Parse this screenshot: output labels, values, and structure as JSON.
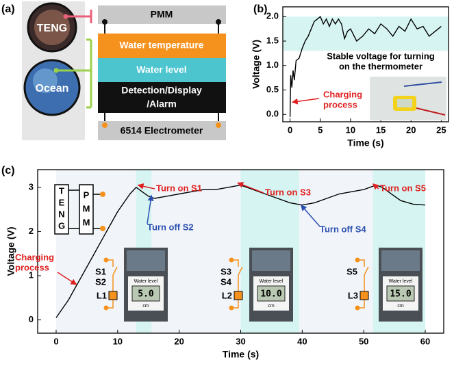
{
  "diagram": {
    "panel_label": "(a)",
    "sources": [
      "TENG",
      "Ocean"
    ],
    "blocks": [
      "PMM",
      "Water temperature",
      "Water level",
      [
        "Detection/Display",
        "/Alarm"
      ],
      "6514 Electrometer"
    ]
  },
  "chart_data": [
    {
      "type": "line",
      "panel_label": "(b)",
      "x_label": "Time (s)",
      "y_label": "Voltage (V)",
      "xlim": [
        -1.2,
        26.2
      ],
      "ylim": [
        -0.15,
        2.2
      ],
      "xticks": [
        0,
        5,
        10,
        15,
        20,
        25
      ],
      "yticks": [
        {
          "value": 0,
          "label": "0.0"
        },
        {
          "value": 0.5,
          "label": "0.5"
        },
        {
          "value": 1,
          "label": "1.0"
        },
        {
          "value": 1.5,
          "label": "1.5"
        },
        {
          "value": 2,
          "label": "2.0"
        }
      ],
      "shade_y": [
        1.3,
        2.0
      ],
      "shade_color": "#d6f5f2",
      "series": [
        {
          "color": "#000000",
          "x": [
            0,
            0.1,
            0.3,
            0.5,
            0.7,
            1,
            1.5,
            2,
            2.5,
            3,
            3.5,
            4,
            4.5,
            5,
            5.5,
            6,
            6.5,
            7,
            7.5,
            8,
            8.5,
            9,
            9.5,
            10,
            11,
            12,
            13,
            14,
            15,
            16,
            17,
            18,
            19,
            20,
            21,
            22,
            23,
            24,
            25
          ],
          "values": [
            -0.05,
            0.8,
            0.55,
            0.9,
            0.7,
            1.1,
            1.15,
            1.35,
            1.5,
            1.6,
            1.75,
            1.9,
            1.95,
            2.0,
            1.85,
            1.95,
            1.8,
            1.95,
            1.85,
            1.95,
            1.85,
            1.55,
            1.7,
            1.75,
            1.5,
            1.6,
            1.75,
            1.65,
            1.85,
            1.75,
            1.6,
            1.8,
            1.7,
            1.95,
            1.75,
            1.8,
            1.6,
            1.7,
            1.8
          ]
        }
      ],
      "annotations": [
        {
          "text": [
            "Stable voltage for turning",
            "on the thermometer"
          ],
          "color": "#000000"
        },
        {
          "text": [
            "Charging",
            "process"
          ],
          "color": "#e02020"
        }
      ]
    },
    {
      "type": "line",
      "panel_label": "(c)",
      "x_label": "Time (s)",
      "y_label": "Voltage (V)",
      "xlim": [
        -3,
        63
      ],
      "ylim": [
        -0.3,
        3.4
      ],
      "xticks": [
        0,
        10,
        20,
        30,
        40,
        50,
        60
      ],
      "yticks": [
        0,
        1,
        2,
        3
      ],
      "shade_x": [
        [
          13,
          15.5
        ],
        [
          30,
          39.5
        ],
        [
          51.5,
          60
        ]
      ],
      "shade_color": "#d6f5f2",
      "series": [
        {
          "color": "#000000",
          "x": [
            0,
            1,
            2,
            3,
            4,
            5,
            6,
            7,
            8,
            9,
            10,
            11,
            12,
            13,
            14,
            15,
            16,
            18,
            20,
            22,
            24,
            26,
            28,
            30,
            32,
            34,
            36,
            38,
            40,
            42,
            44,
            46,
            48,
            50,
            51,
            52,
            53,
            54,
            56,
            58,
            60
          ],
          "values": [
            0.05,
            0.25,
            0.45,
            0.7,
            0.95,
            1.2,
            1.45,
            1.7,
            1.95,
            2.2,
            2.45,
            2.65,
            2.85,
            3.0,
            2.9,
            2.8,
            2.75,
            2.8,
            2.85,
            2.9,
            2.95,
            2.95,
            3.0,
            3.05,
            2.95,
            2.85,
            2.75,
            2.65,
            2.6,
            2.65,
            2.75,
            2.85,
            2.9,
            2.95,
            3.0,
            3.05,
            3.0,
            2.9,
            2.7,
            2.62,
            2.6
          ]
        }
      ],
      "annotations": [
        {
          "text": [
            "Turn on S1"
          ],
          "color": "#e02020"
        },
        {
          "text": [
            "Turn on S3"
          ],
          "color": "#e02020"
        },
        {
          "text": [
            "Turn on S5"
          ],
          "color": "#e02020"
        },
        {
          "text": [
            "Turn off S2"
          ],
          "color": "#2a4fb0"
        },
        {
          "text": [
            "Turn off S4"
          ],
          "color": "#2a4fb0"
        },
        {
          "text": [
            "Charging",
            "process"
          ],
          "color": "#e02020"
        }
      ],
      "teng_letters": [
        "T",
        "E",
        "N",
        "G"
      ],
      "pmm_letters": [
        "P",
        "M",
        "M"
      ],
      "circuits": [
        {
          "switches": [
            "S1",
            "S2"
          ],
          "load": "L1",
          "reading": "5.0"
        },
        {
          "switches": [
            "S3",
            "S4"
          ],
          "load": "L2",
          "reading": "10.0"
        },
        {
          "switches": [
            "S5"
          ],
          "load": "L3",
          "reading": "15.0"
        }
      ],
      "screen_title": "Water level",
      "screen_unit": "cm"
    }
  ]
}
